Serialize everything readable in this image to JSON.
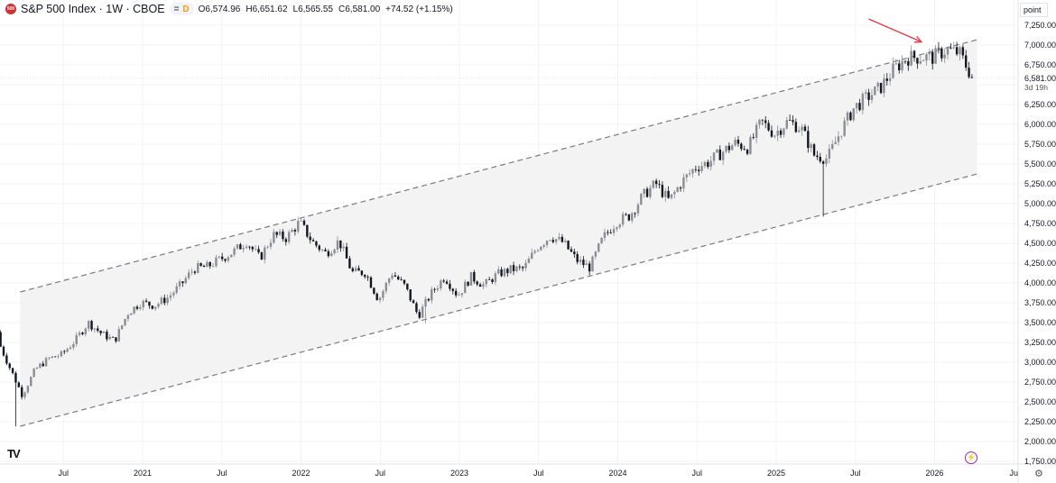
{
  "header": {
    "symbol_title": "S&P 500 Index · 1W · CBOE",
    "logo_text": "500",
    "status_eq": "=",
    "status_d": "D",
    "open": "O6,574.96",
    "high": "H6,651.62",
    "low": "L6,565.55",
    "close": "C6,581.00",
    "change": "+74.52 (+1.15%)"
  },
  "axis": {
    "unit_label": "point",
    "current_price_label": "6,581.00",
    "countdown": "3d 19h",
    "y_ticks": [
      "7,250.00",
      "7,000.00",
      "6,750.00",
      "6,250.00",
      "6,000.00",
      "5,750.00",
      "5,500.00",
      "5,250.00",
      "5,000.00",
      "4,750.00",
      "4,500.00",
      "4,250.00",
      "4,000.00",
      "3,750.00",
      "3,500.00",
      "3,250.00",
      "3,000.00",
      "2,750.00",
      "2,500.00",
      "2,250.00",
      "2,000.00",
      "1,750.00"
    ],
    "x_ticks": [
      "Jul",
      "2021",
      "Jul",
      "2022",
      "Jul",
      "2023",
      "Jul",
      "2024",
      "Jul",
      "2025",
      "Jul",
      "2026",
      "Ju"
    ]
  },
  "colors": {
    "up": "#8a8d96",
    "down": "#131722",
    "channel": "#787b86",
    "channel_fill": "#f3f3f3",
    "arrow": "#f23645",
    "accent": "#9c27b0"
  },
  "chart_data": {
    "type": "candlestick",
    "interval": "1W",
    "ylim": [
      1750,
      7300
    ],
    "xlim": [
      "2020-02",
      "2026-06"
    ],
    "grid": true,
    "monthly_close_start": "2020-02",
    "monthly_close": [
      2954,
      2585,
      2912,
      3044,
      3100,
      3271,
      3500,
      3363,
      3270,
      3622,
      3756,
      3714,
      3811,
      3973,
      4181,
      4204,
      4298,
      4395,
      4523,
      4308,
      4605,
      4567,
      4766,
      4516,
      4374,
      4530,
      4132,
      4132,
      3785,
      4130,
      3955,
      3586,
      3872,
      4080,
      3840,
      4077,
      3970,
      4109,
      4169,
      4180,
      4450,
      4589,
      4508,
      4288,
      4194,
      4568,
      4770,
      4846,
      5096,
      5254,
      5036,
      5278,
      5460,
      5522,
      5648,
      5762,
      5705,
      6032,
      5882,
      6040,
      5955,
      5612,
      5569,
      5912,
      6205,
      6339,
      6460,
      6688,
      6840,
      6849,
      6845,
      6940,
      6900,
      6581
    ],
    "extreme_lows": [
      {
        "date": "2020-03",
        "low": 2192
      },
      {
        "date": "2022-10",
        "low": 3492
      },
      {
        "date": "2025-04",
        "low": 4835
      }
    ],
    "last_close": 6581.0,
    "channel": {
      "upper": [
        {
          "date": "2020-03-23",
          "value": 3886
        },
        {
          "date": "2026-04-08",
          "value": 7068
        }
      ],
      "lower": [
        {
          "date": "2020-03-23",
          "value": 2193
        },
        {
          "date": "2026-04-08",
          "value": 5375
        }
      ]
    },
    "annotation": {
      "type": "arrow",
      "from": {
        "date": "2025-08",
        "value": 7330
      },
      "to": {
        "date": "2025-12",
        "value": 7040
      }
    }
  }
}
